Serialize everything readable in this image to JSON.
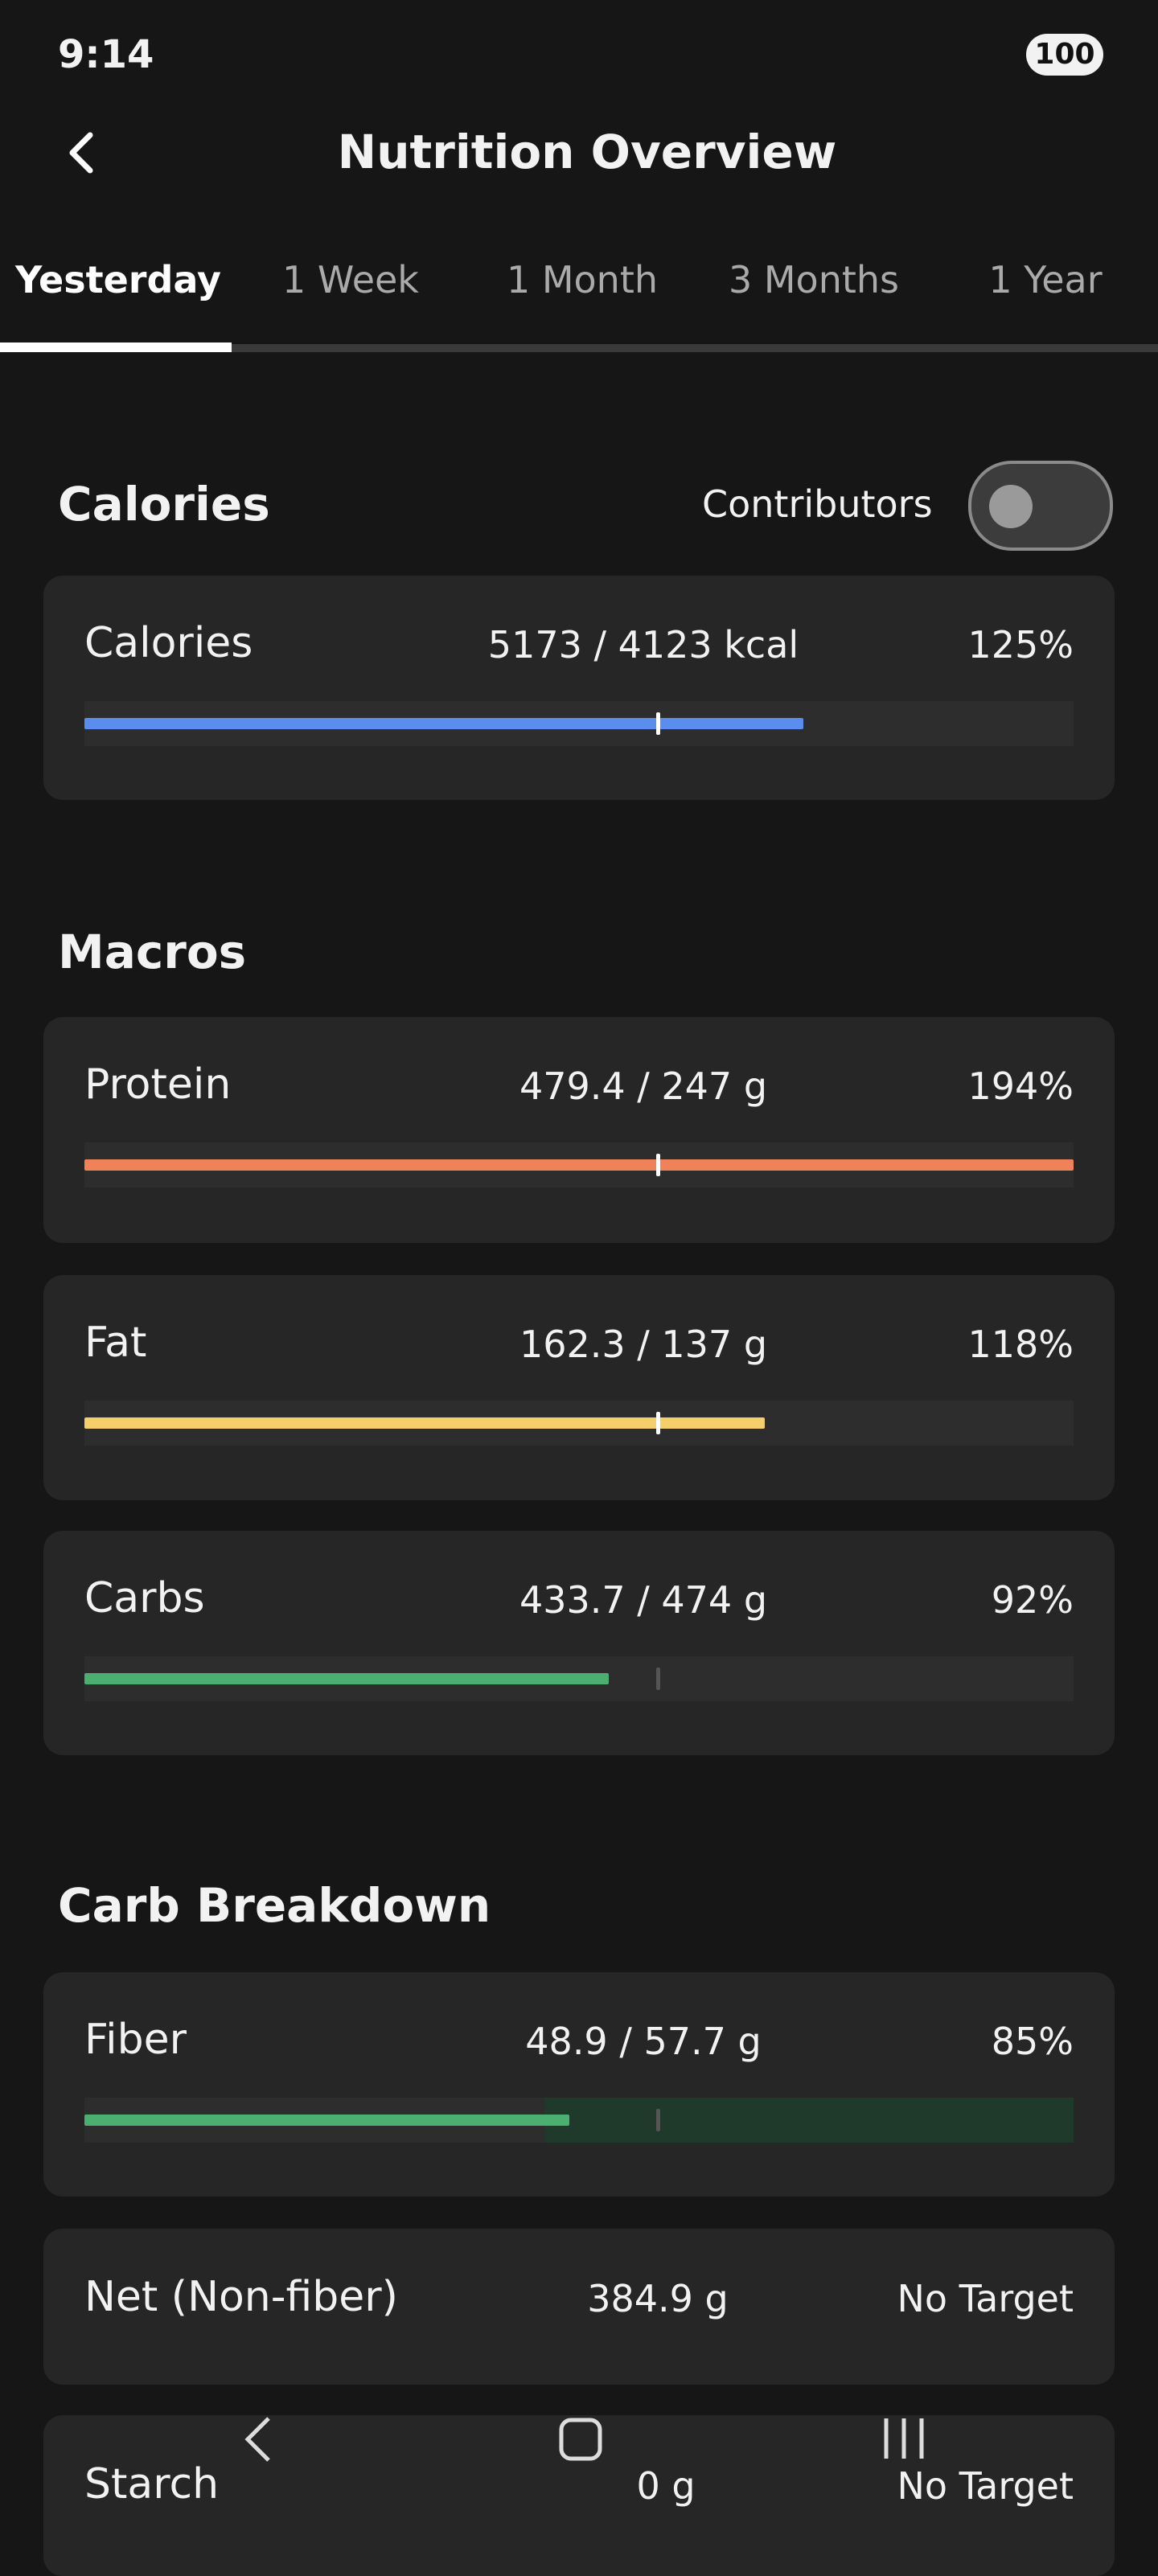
{
  "status_bar": {
    "time": "9:14",
    "battery": "100"
  },
  "header": {
    "title": "Nutrition Overview"
  },
  "tabs": [
    "Yesterday",
    "1 Week",
    "1 Month",
    "3 Months",
    "1 Year"
  ],
  "calories": {
    "heading": "Calories",
    "toggle_label": "Contributors",
    "rows": [
      {
        "name": "Calories",
        "amount": "5173 / 4123 kcal",
        "percent": "125%"
      }
    ]
  },
  "macros": {
    "heading": "Macros",
    "rows": [
      {
        "name": "Protein",
        "amount": "479.4 / 247 g",
        "percent": "194%"
      },
      {
        "name": "Fat",
        "amount": "162.3 / 137 g",
        "percent": "118%"
      },
      {
        "name": "Carbs",
        "amount": "433.7 / 474 g",
        "percent": "92%"
      }
    ]
  },
  "carb_breakdown": {
    "heading": "Carb Breakdown",
    "rows": [
      {
        "name": "Fiber",
        "amount": "48.9 / 57.7 g",
        "percent": "85%"
      },
      {
        "name": "Net (Non-fiber)",
        "amount": "384.9 g",
        "percent": "No Target"
      },
      {
        "name": "Starch",
        "amount": "0 g",
        "percent": "No Target"
      }
    ]
  }
}
